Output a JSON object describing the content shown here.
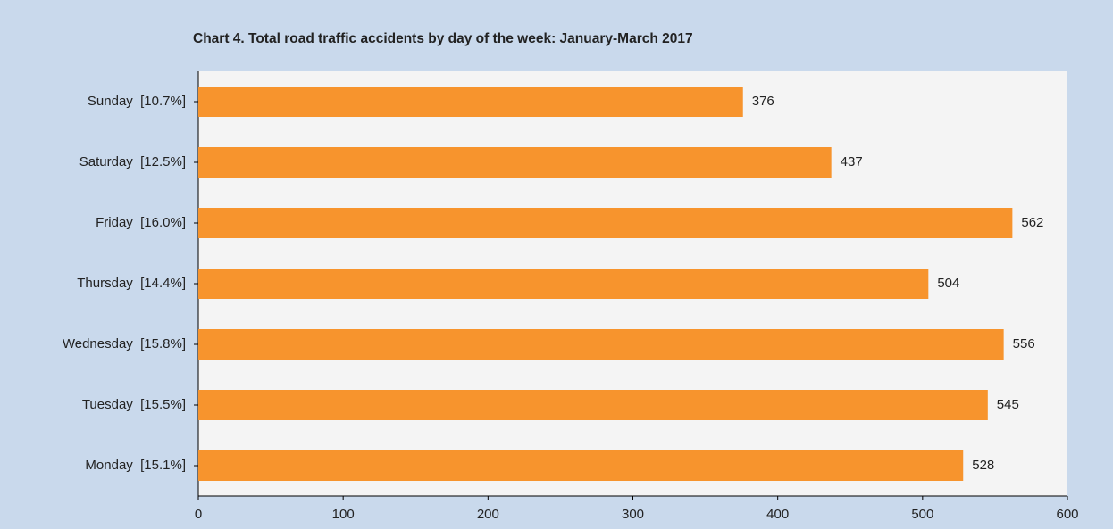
{
  "chart_data": {
    "type": "bar",
    "orientation": "horizontal",
    "title": "Chart 4. Total road traffic accidents by day of the week: January-March 2017",
    "categories": [
      "Sunday  [10.7%]",
      "Saturday  [12.5%]",
      "Friday  [16.0%]",
      "Thursday  [14.4%]",
      "Wednesday  [15.8%]",
      "Tuesday  [15.5%]",
      "Monday  [15.1%]"
    ],
    "values": [
      376,
      437,
      562,
      504,
      556,
      545,
      528
    ],
    "color": "#f7942d",
    "xlim": [
      0,
      600
    ],
    "xticks": [
      0,
      100,
      200,
      300,
      400,
      500,
      600
    ]
  }
}
